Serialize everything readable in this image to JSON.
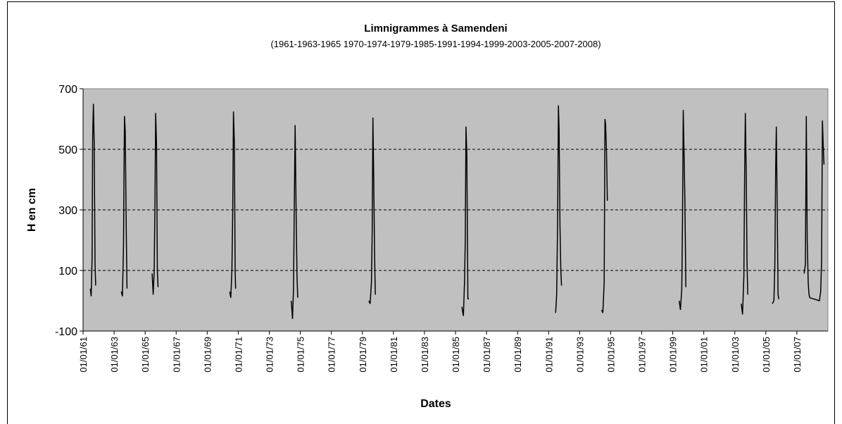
{
  "chart_data": {
    "type": "line",
    "title": "Limnigrammes à Samendeni",
    "subtitle": "(1961-1963-1965 1970-1974-1979-1985-1991-1994-1999-2003-2005-2007-2008)",
    "x_label": "Dates",
    "y_label": "H en cm",
    "color": "#000000",
    "x": [
      "20/06/61",
      "10/07/61",
      "01/08/61",
      "15/08/61",
      "01/09/61",
      "20/09/61",
      "10/10/61",
      "25/10/61",
      "01/01/62",
      "20/06/63",
      "15/07/63",
      "10/08/63",
      "01/09/63",
      "20/09/63",
      "15/10/63",
      "01/11/63",
      "01/01/64",
      "15/06/65",
      "10/07/65",
      "01/08/65",
      "20/08/65",
      "05/09/65",
      "25/09/65",
      "15/10/65",
      "01/11/65",
      "01/01/67",
      "15/06/70",
      "10/07/70",
      "05/08/70",
      "25/08/70",
      "10/09/70",
      "01/10/70",
      "20/10/70",
      "01/11/70",
      "01/01/72",
      "01/06/74",
      "01/07/74",
      "25/07/74",
      "15/08/74",
      "01/09/74",
      "25/09/74",
      "15/10/74",
      "01/11/74",
      "01/01/76",
      "01/06/79",
      "01/07/79",
      "01/08/79",
      "20/08/79",
      "05/09/79",
      "25/09/79",
      "15/10/79",
      "01/11/79",
      "01/01/81",
      "01/06/85",
      "05/07/85",
      "01/08/85",
      "20/08/85",
      "05/09/85",
      "25/09/85",
      "20/10/85",
      "05/11/85",
      "01/01/87",
      "15/06/91",
      "10/07/91",
      "01/08/91",
      "20/08/91",
      "05/09/91",
      "25/09/91",
      "15/10/91",
      "01/11/91",
      "01/01/93",
      "01/06/94",
      "01/07/94",
      "01/08/94",
      "20/08/94",
      "05/09/94",
      "25/09/94",
      "15/10/94",
      "01/01/96",
      "01/06/99",
      "01/07/99",
      "01/08/99",
      "20/08/99",
      "05/09/99",
      "25/09/99",
      "15/10/99",
      "05/11/99",
      "01/01/01",
      "01/06/03",
      "01/07/03",
      "01/08/03",
      "20/08/03",
      "05/09/03",
      "25/09/03",
      "15/10/03",
      "01/11/03",
      "01/01/05",
      "01/06/05",
      "10/07/05",
      "01/08/05",
      "20/08/05",
      "05/09/05",
      "25/09/05",
      "15/10/05",
      "01/11/05",
      "01/01/07",
      "20/06/07",
      "20/07/07",
      "10/08/07",
      "01/09/07",
      "25/09/07",
      "15/10/07",
      "01/11/07",
      "15/06/08",
      "15/07/08",
      "05/08/08",
      "25/08/08",
      "10/09/08",
      "30/09/08"
    ],
    "values": [
      40,
      15,
      140,
      540,
      650,
      520,
      120,
      50,
      null,
      30,
      15,
      180,
      610,
      560,
      220,
      40,
      null,
      90,
      20,
      100,
      320,
      620,
      520,
      100,
      45,
      null,
      30,
      10,
      100,
      300,
      625,
      520,
      100,
      40,
      null,
      0,
      -60,
      40,
      350,
      580,
      280,
      80,
      10,
      null,
      0,
      -10,
      60,
      230,
      605,
      390,
      150,
      20,
      null,
      -20,
      -50,
      60,
      200,
      575,
      480,
      5,
      10,
      null,
      -40,
      20,
      270,
      645,
      560,
      250,
      100,
      50,
      null,
      -30,
      -40,
      60,
      600,
      580,
      490,
      330,
      null,
      0,
      -30,
      40,
      280,
      630,
      480,
      320,
      45,
      null,
      -10,
      -45,
      80,
      420,
      620,
      430,
      130,
      20,
      null,
      -10,
      0,
      120,
      440,
      575,
      300,
      20,
      5,
      null,
      90,
      120,
      610,
      200,
      60,
      20,
      10,
      0,
      30,
      130,
      595,
      520,
      450
    ],
    "xlim": [
      "01/01/61",
      "01/01/09"
    ],
    "xticks": [
      "01/01/61",
      "01/01/63",
      "01/01/65",
      "01/01/67",
      "01/01/69",
      "01/01/71",
      "01/01/73",
      "01/01/75",
      "01/01/77",
      "01/01/79",
      "01/01/81",
      "01/01/83",
      "01/01/85",
      "01/01/87",
      "01/01/89",
      "01/01/91",
      "01/01/93",
      "01/01/95",
      "01/01/97",
      "01/01/99",
      "01/01/01",
      "01/01/03",
      "01/01/05",
      "01/01/07"
    ],
    "ylim": [
      -100,
      700
    ],
    "yticks": [
      -100,
      100,
      300,
      500,
      700
    ],
    "grid": true
  }
}
